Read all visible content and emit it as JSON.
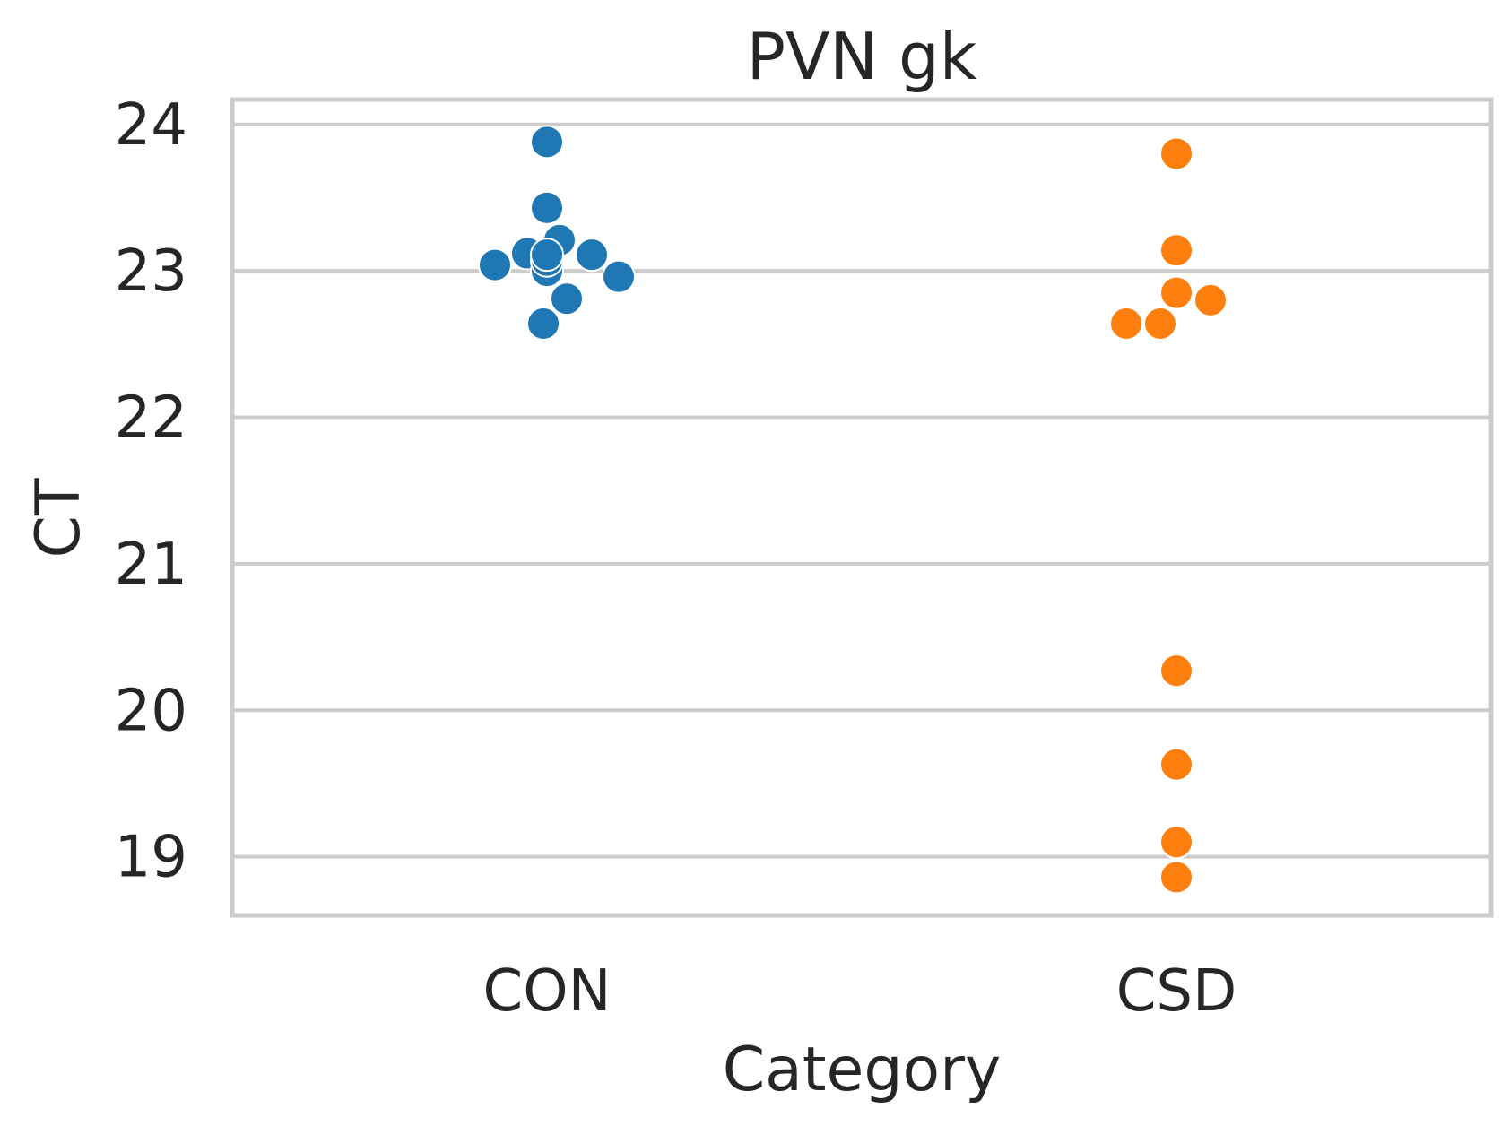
{
  "chart_data": {
    "type": "scatter",
    "title": "PVN gk",
    "xlabel": "Category",
    "ylabel": "CT",
    "categories": [
      "CON",
      "CSD"
    ],
    "yticks": [
      19,
      20,
      21,
      22,
      23,
      24
    ],
    "ylim": [
      18.6,
      24.17
    ],
    "grid": true,
    "series": [
      {
        "category": "CON",
        "color": "#1f77b4",
        "values": [
          23.88,
          23.43,
          23.21,
          23.12,
          23.11,
          23.04,
          23.0,
          22.96,
          23.07,
          23.11,
          22.81,
          22.64
        ]
      },
      {
        "category": "CSD",
        "color": "#ff7f0e",
        "values": [
          23.8,
          23.14,
          22.85,
          22.8,
          22.64,
          22.64,
          20.27,
          19.63,
          19.1,
          18.86
        ]
      }
    ]
  }
}
